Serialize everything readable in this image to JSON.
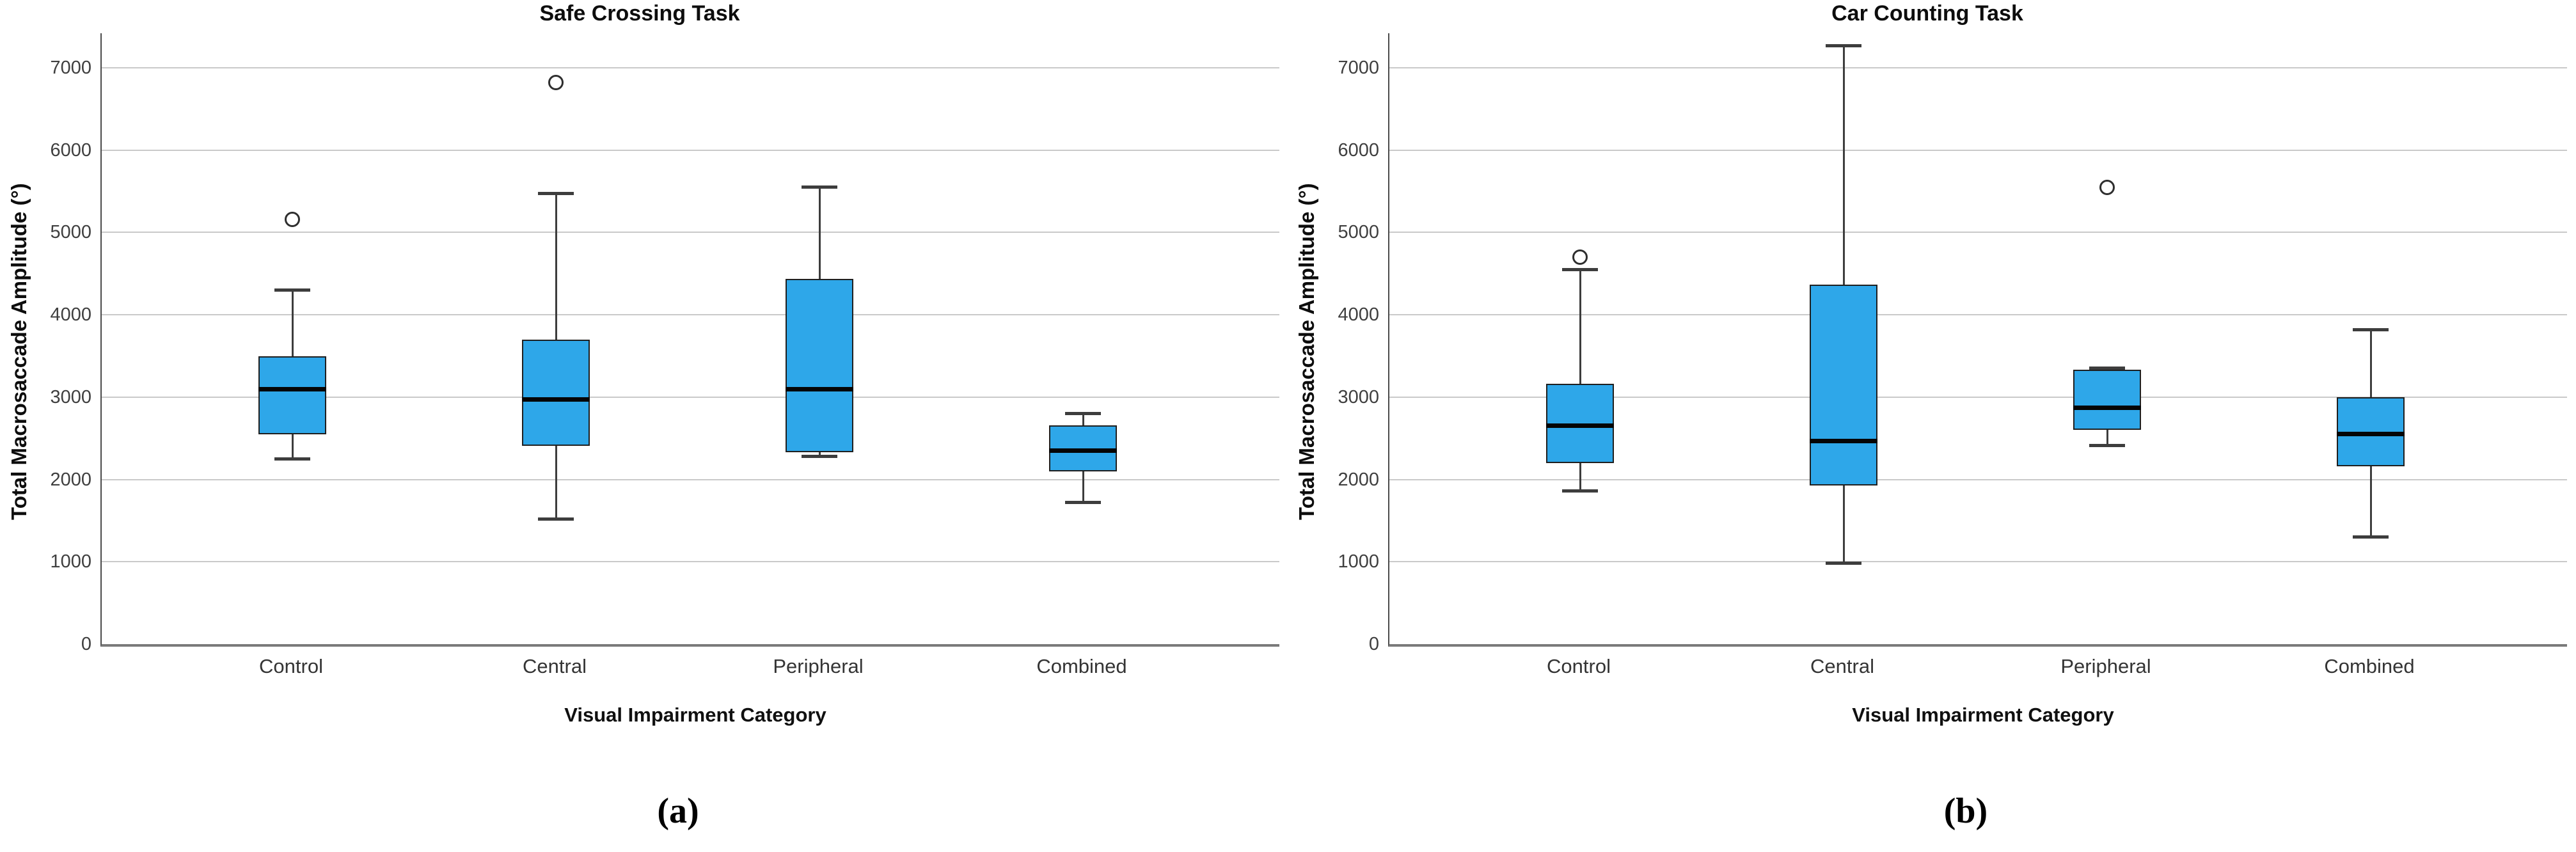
{
  "figure": {
    "description": "Two side-by-side SPSS-style box plots of total macrosaccade amplitude by visual impairment category"
  },
  "chart_style": {
    "box_fill": "#2ea7e9",
    "box_border": "#1f1f1f",
    "median_color": "#050505",
    "whisker_color": "#3d3d3d",
    "gridline_color": "#c9c9c9",
    "y_axis_line_color": "#4a4a4a",
    "baseline_color": "#7a7a7a",
    "tick_label_color": "#3f3f3f",
    "outlier_ring_color": "#2e2e2e",
    "background": "#ffffff"
  },
  "chart_data": [
    {
      "type": "boxplot",
      "title": "Safe Crossing Task",
      "caption": "(a)",
      "xlabel": "Visual Impairment Category",
      "ylabel": "Total Macrosaccade Amplitude (°)",
      "categories": [
        "Control",
        "Central",
        "Peripheral",
        "Combined"
      ],
      "yticks": [
        0,
        1000,
        2000,
        3000,
        4000,
        5000,
        6000,
        7000
      ],
      "ylim": [
        0,
        7420
      ],
      "grid": true,
      "legend": "none",
      "boxes": [
        {
          "category": "Control",
          "whisker_low": 2250,
          "q1": 2550,
          "median": 3100,
          "q3": 3500,
          "whisker_high": 4300,
          "outliers": [
            5160
          ]
        },
        {
          "category": "Central",
          "whisker_low": 1520,
          "q1": 2410,
          "median": 2970,
          "q3": 3700,
          "whisker_high": 5470,
          "outliers": [
            6820
          ]
        },
        {
          "category": "Peripheral",
          "whisker_low": 2280,
          "q1": 2330,
          "median": 3100,
          "q3": 4440,
          "whisker_high": 5550,
          "outliers": []
        },
        {
          "category": "Combined",
          "whisker_low": 1720,
          "q1": 2100,
          "median": 2350,
          "q3": 2660,
          "whisker_high": 2800,
          "outliers": []
        }
      ]
    },
    {
      "type": "boxplot",
      "title": "Car Counting Task",
      "caption": "(b)",
      "xlabel": "Visual Impairment Category",
      "ylabel": "Total Macrosaccade Amplitude (°)",
      "categories": [
        "Control",
        "Central",
        "Peripheral",
        "Combined"
      ],
      "yticks": [
        0,
        1000,
        2000,
        3000,
        4000,
        5000,
        6000,
        7000
      ],
      "ylim": [
        0,
        7420
      ],
      "grid": true,
      "legend": "none",
      "boxes": [
        {
          "category": "Control",
          "whisker_low": 1860,
          "q1": 2200,
          "median": 2650,
          "q3": 3160,
          "whisker_high": 4550,
          "outliers": [
            4700
          ]
        },
        {
          "category": "Central",
          "whisker_low": 980,
          "q1": 1930,
          "median": 2470,
          "q3": 4370,
          "whisker_high": 7270,
          "outliers": []
        },
        {
          "category": "Peripheral",
          "whisker_low": 2410,
          "q1": 2600,
          "median": 2870,
          "q3": 3330,
          "whisker_high": 3350,
          "outliers": [
            5550
          ]
        },
        {
          "category": "Combined",
          "whisker_low": 1300,
          "q1": 2160,
          "median": 2550,
          "q3": 3000,
          "whisker_high": 3820,
          "outliers": []
        }
      ]
    }
  ]
}
